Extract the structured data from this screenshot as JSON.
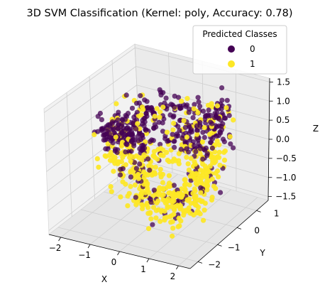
{
  "chart_data": {
    "type": "scatter",
    "projection": "3d",
    "title": "3D SVM Classification (Kernel: poly, Accuracy: 0.78)",
    "xlabel": "X",
    "ylabel": "Y",
    "zlabel": "Z",
    "xlim": [
      -2.4,
      2.4
    ],
    "ylim": [
      -2.4,
      1.6
    ],
    "zlim": [
      -1.6,
      1.6
    ],
    "x_ticks": [
      "−2",
      "−1",
      "0",
      "1",
      "2"
    ],
    "y_ticks": [
      "−2",
      "−1",
      "0",
      "1"
    ],
    "z_ticks": [
      "1.5",
      "1.0",
      "0.5",
      "0.0",
      "−0.5",
      "−1.0",
      "−1.5"
    ],
    "grid": true,
    "legend": {
      "title": "Predicted Classes",
      "placement": "top-right",
      "entries": [
        {
          "label": "0",
          "color": "#440154"
        },
        {
          "label": "1",
          "color": "#fde725"
        }
      ]
    },
    "series": [
      {
        "name": "0",
        "color": "#440154",
        "count": 420,
        "description_of_distribution": "ring-shaped band, upper/back portion"
      },
      {
        "name": "1",
        "color": "#fde725",
        "count": 520,
        "description_of_distribution": "ring-shaped band, lower/front portion"
      }
    ]
  }
}
